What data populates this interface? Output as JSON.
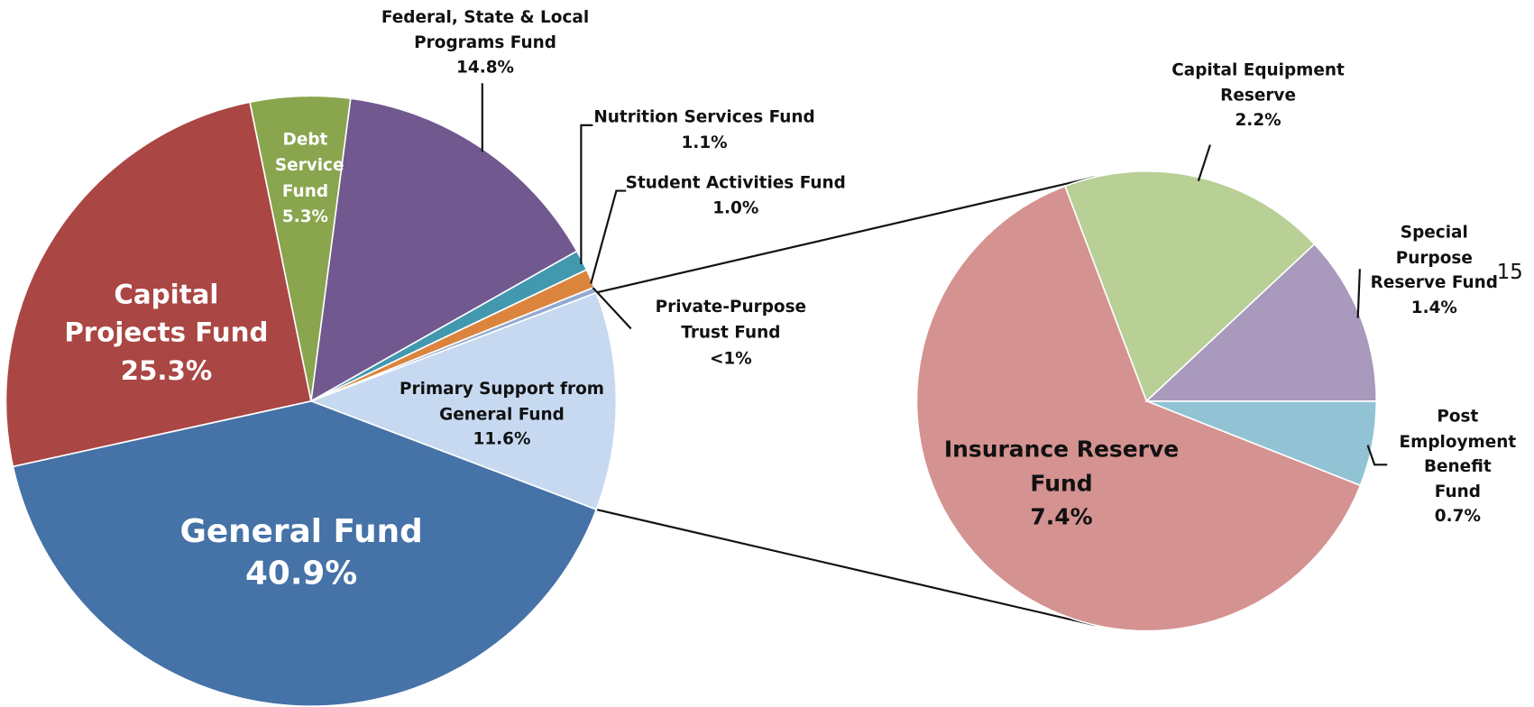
{
  "chart_data": {
    "type": "pie",
    "categories": [
      "Primary Support from General Fund",
      "General Fund",
      "Capital Projects Fund",
      "Debt Service Fund",
      "Federal, State & Local Programs Fund",
      "Nutrition Services Fund",
      "Student Activities Fund",
      "Private-Purpose Trust Fund"
    ],
    "values": [
      11.6,
      40.9,
      25.3,
      5.3,
      14.8,
      1.1,
      1.0,
      0.3
    ],
    "value_labels": [
      "11.6%",
      "40.9%",
      "25.3%",
      "5.3%",
      "14.8%",
      "1.1%",
      "1.0%",
      "<1%"
    ],
    "colors": [
      "#c6d9f1",
      "#4572a7",
      "#aa4643",
      "#89a54e",
      "#71588f",
      "#4198af",
      "#db843d",
      "#93a9cf"
    ],
    "detail": {
      "categories": [
        "Post Employment Benefit Fund",
        "Insurance Reserve Fund",
        "Capital Equipment Reserve",
        "Special Purpose Reserve Fund"
      ],
      "values": [
        0.7,
        7.4,
        2.2,
        1.4
      ],
      "value_labels": [
        "0.7%",
        "7.4%",
        "2.2%",
        "1.4%"
      ],
      "colors": [
        "#92c3d5",
        "#d49290",
        "#b8cf96",
        "#a899bd"
      ]
    },
    "annotation": "15"
  }
}
